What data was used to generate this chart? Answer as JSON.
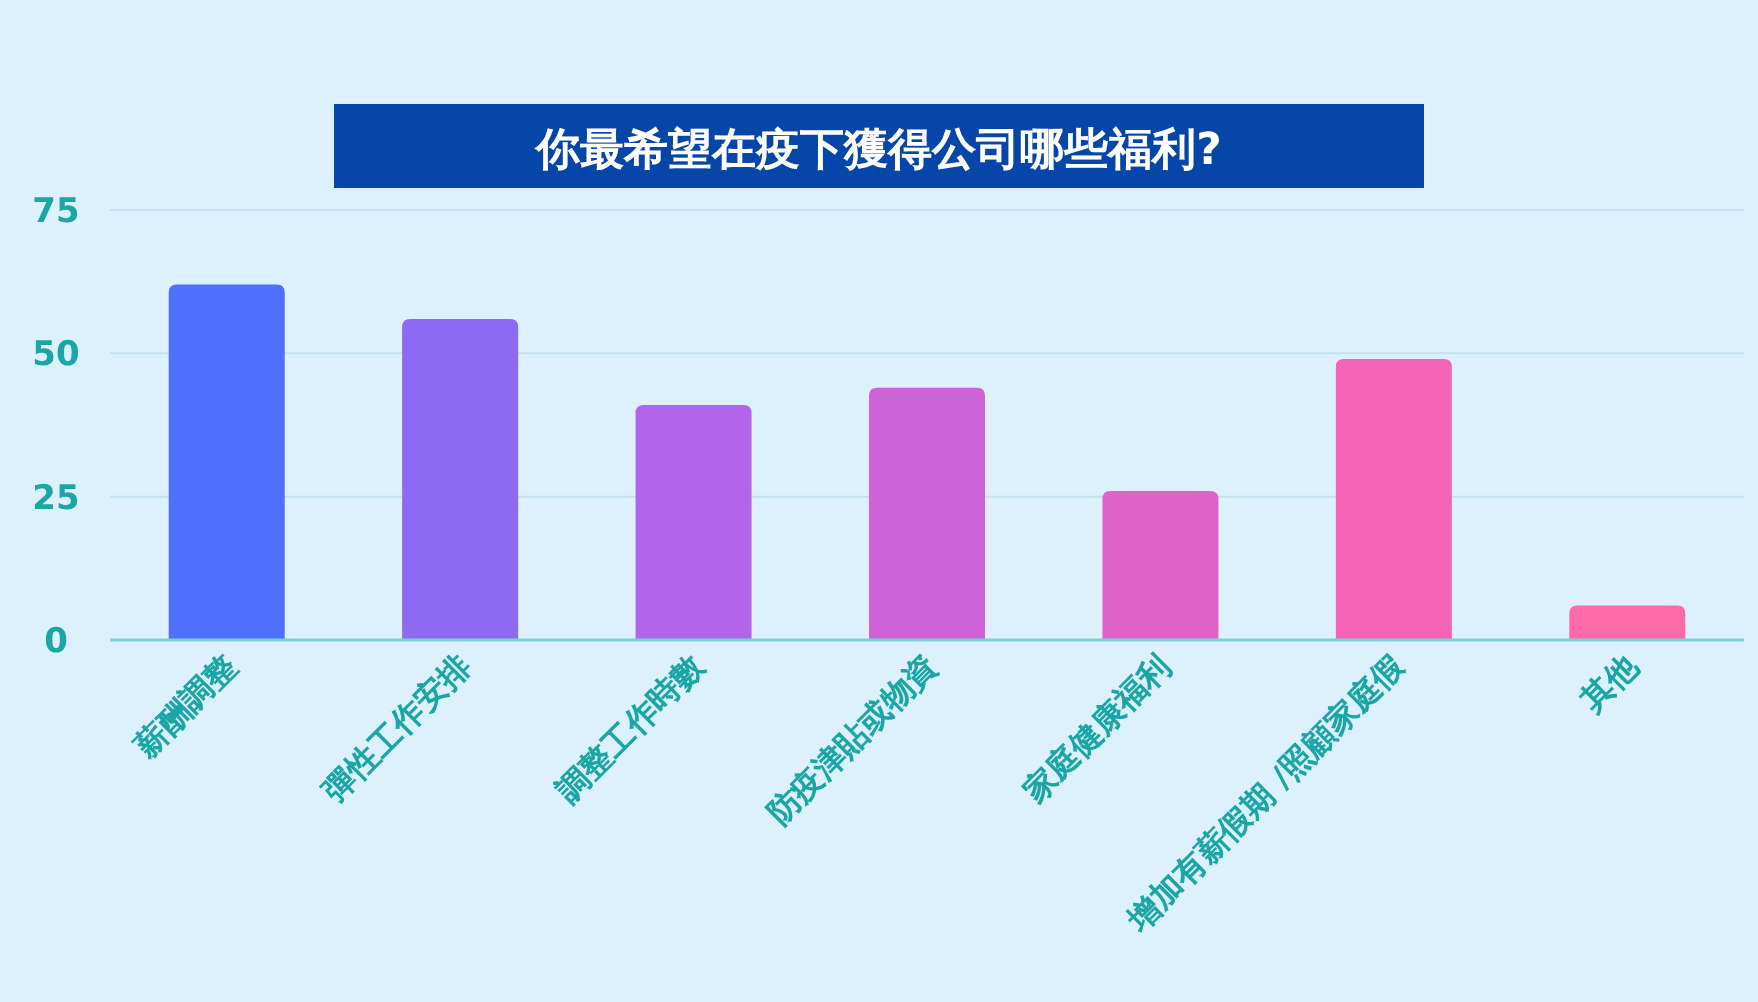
{
  "chart_data": {
    "type": "bar",
    "title": "你最希望在疫下獲得公司哪些福利?",
    "categories": [
      "薪酬調整",
      "彈性工作安排",
      "調整工作時數",
      "防疫津貼或物資",
      "家庭健康福利",
      "增加有薪假期 /照顧家庭假",
      "其他"
    ],
    "values": [
      62,
      56,
      41,
      44,
      26,
      49,
      6
    ],
    "colors": [
      "#4f6ffd",
      "#8c6af2",
      "#b265ea",
      "#cd62d9",
      "#e062c9",
      "#f563b6",
      "#fe6aa7"
    ],
    "ylim": [
      0,
      75
    ],
    "yticks": [
      0,
      25,
      50,
      75
    ],
    "grid": "y"
  }
}
